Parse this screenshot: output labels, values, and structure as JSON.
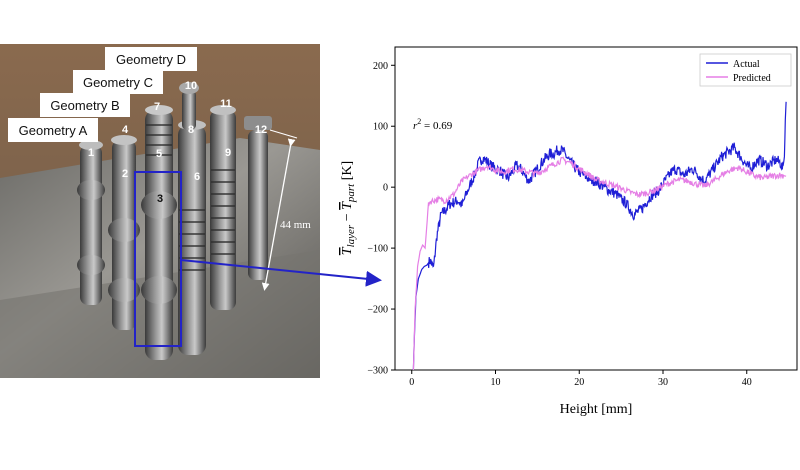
{
  "photo": {
    "geometry_labels": [
      "Geometry A",
      "Geometry B",
      "Geometry C",
      "Geometry D"
    ],
    "specimen_numbers": [
      "1",
      "2",
      "3",
      "4",
      "5",
      "6",
      "7",
      "8",
      "9",
      "10",
      "11",
      "12"
    ],
    "dimension_label": "44 mm"
  },
  "colors": {
    "actual": "#1f1fd6",
    "predicted": "#e57fe5",
    "callout": "#2323c8"
  },
  "chart_data": {
    "type": "line",
    "title": "",
    "xlabel": "Height [mm]",
    "ylabel_parts": {
      "t1": "T",
      "s1": "layer",
      "minus": " − ",
      "t2": "T",
      "s2": "part",
      "unit": " [K]"
    },
    "xlim": [
      -2,
      46
    ],
    "ylim": [
      -300,
      230
    ],
    "xticks": [
      0,
      10,
      20,
      30,
      40
    ],
    "yticks": [
      -300,
      -200,
      -100,
      0,
      100,
      200
    ],
    "legend_position": "top-right",
    "annotation": {
      "prefix": "r",
      "sup": "2",
      "rest": " = 0.69"
    },
    "series": [
      {
        "name": "Actual",
        "color": "#1f1fd6",
        "points": [
          [
            0.2,
            -300
          ],
          [
            0.3,
            -250
          ],
          [
            0.5,
            -180
          ],
          [
            0.8,
            -150
          ],
          [
            1.2,
            -135
          ],
          [
            1.5,
            -130
          ],
          [
            1.8,
            -128
          ],
          [
            2.2,
            -120
          ],
          [
            2.6,
            -133
          ],
          [
            3.0,
            -80
          ],
          [
            3.5,
            -45
          ],
          [
            4.0,
            -38
          ],
          [
            4.5,
            -28
          ],
          [
            5.0,
            -25
          ],
          [
            5.5,
            -22
          ],
          [
            6.0,
            -30
          ],
          [
            6.5,
            -12
          ],
          [
            7.0,
            5
          ],
          [
            7.5,
            20
          ],
          [
            8.0,
            40
          ],
          [
            8.5,
            48
          ],
          [
            9.0,
            42
          ],
          [
            9.5,
            35
          ],
          [
            10.0,
            30
          ],
          [
            10.5,
            28
          ],
          [
            11.0,
            20
          ],
          [
            11.5,
            15
          ],
          [
            12.0,
            25
          ],
          [
            12.5,
            35
          ],
          [
            13.0,
            30
          ],
          [
            13.5,
            20
          ],
          [
            14.0,
            10
          ],
          [
            14.5,
            20
          ],
          [
            15.0,
            30
          ],
          [
            15.5,
            40
          ],
          [
            16.0,
            48
          ],
          [
            16.5,
            55
          ],
          [
            17.0,
            55
          ],
          [
            17.5,
            62
          ],
          [
            18.0,
            60
          ],
          [
            18.5,
            50
          ],
          [
            19.0,
            40
          ],
          [
            19.5,
            32
          ],
          [
            20.0,
            25
          ],
          [
            20.5,
            20
          ],
          [
            21.0,
            15
          ],
          [
            21.5,
            12
          ],
          [
            22.0,
            10
          ],
          [
            22.5,
            5
          ],
          [
            23.0,
            0
          ],
          [
            23.5,
            -5
          ],
          [
            24.0,
            -8
          ],
          [
            24.5,
            -12
          ],
          [
            25.0,
            -20
          ],
          [
            25.5,
            -25
          ],
          [
            26.0,
            -35
          ],
          [
            26.5,
            -45
          ],
          [
            27.0,
            -40
          ],
          [
            27.5,
            -35
          ],
          [
            28.0,
            -25
          ],
          [
            28.5,
            -15
          ],
          [
            29.0,
            -10
          ],
          [
            29.5,
            -5
          ],
          [
            30.0,
            5
          ],
          [
            30.5,
            15
          ],
          [
            31.0,
            25
          ],
          [
            31.5,
            30
          ],
          [
            32.0,
            25
          ],
          [
            32.5,
            20
          ],
          [
            33.0,
            25
          ],
          [
            33.5,
            30
          ],
          [
            34.0,
            25
          ],
          [
            34.5,
            15
          ],
          [
            35.0,
            10
          ],
          [
            35.5,
            20
          ],
          [
            36.0,
            30
          ],
          [
            36.5,
            40
          ],
          [
            37.0,
            50
          ],
          [
            37.5,
            55
          ],
          [
            38.0,
            60
          ],
          [
            38.5,
            65
          ],
          [
            39.0,
            55
          ],
          [
            39.5,
            45
          ],
          [
            40.0,
            35
          ],
          [
            40.5,
            30
          ],
          [
            41.0,
            40
          ],
          [
            41.5,
            45
          ],
          [
            42.0,
            40
          ],
          [
            42.5,
            35
          ],
          [
            43.0,
            40
          ],
          [
            43.5,
            45
          ],
          [
            44.0,
            40
          ],
          [
            44.3,
            30
          ],
          [
            44.5,
            50
          ],
          [
            44.6,
            110
          ],
          [
            44.7,
            140
          ]
        ]
      },
      {
        "name": "Predicted",
        "color": "#e57fe5",
        "points": [
          [
            0.2,
            -300
          ],
          [
            0.4,
            -200
          ],
          [
            0.7,
            -130
          ],
          [
            1.0,
            -105
          ],
          [
            1.3,
            -95
          ],
          [
            1.6,
            -100
          ],
          [
            2.0,
            -25
          ],
          [
            3.0,
            -20
          ],
          [
            4.0,
            -22
          ],
          [
            5.0,
            -12
          ],
          [
            6.0,
            10
          ],
          [
            7.0,
            20
          ],
          [
            8.0,
            28
          ],
          [
            9.0,
            35
          ],
          [
            10.0,
            28
          ],
          [
            11.0,
            25
          ],
          [
            12.0,
            30
          ],
          [
            13.0,
            28
          ],
          [
            14.0,
            25
          ],
          [
            15.0,
            22
          ],
          [
            16.0,
            30
          ],
          [
            17.0,
            38
          ],
          [
            18.0,
            45
          ],
          [
            19.0,
            40
          ],
          [
            20.0,
            30
          ],
          [
            21.0,
            22
          ],
          [
            22.0,
            12
          ],
          [
            23.0,
            8
          ],
          [
            24.0,
            3
          ],
          [
            25.0,
            -2
          ],
          [
            26.0,
            -8
          ],
          [
            27.0,
            -12
          ],
          [
            28.0,
            -10
          ],
          [
            29.0,
            -5
          ],
          [
            30.0,
            2
          ],
          [
            31.0,
            8
          ],
          [
            32.0,
            12
          ],
          [
            33.0,
            10
          ],
          [
            34.0,
            5
          ],
          [
            35.0,
            2
          ],
          [
            36.0,
            10
          ],
          [
            37.0,
            20
          ],
          [
            38.0,
            28
          ],
          [
            39.0,
            32
          ],
          [
            40.0,
            25
          ],
          [
            41.0,
            18
          ],
          [
            42.0,
            15
          ],
          [
            43.0,
            18
          ],
          [
            44.0,
            20
          ],
          [
            44.7,
            18
          ]
        ]
      }
    ]
  }
}
